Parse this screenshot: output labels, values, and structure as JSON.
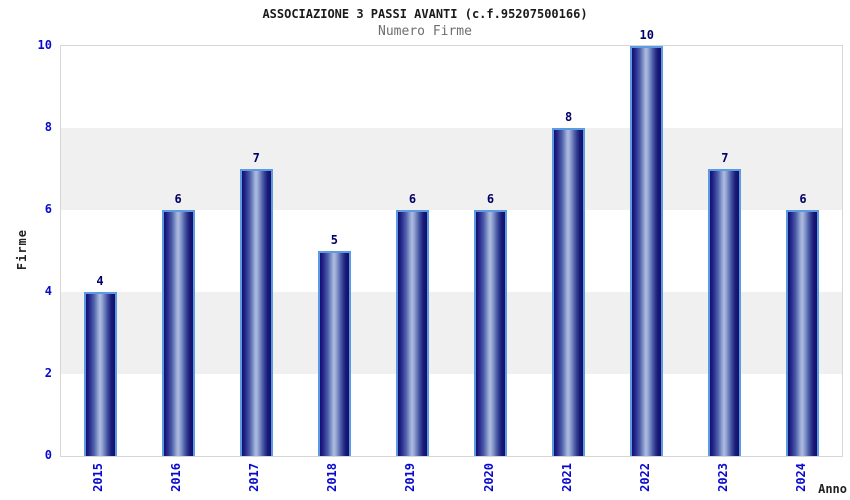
{
  "header": {
    "title": "ASSOCIAZIONE 3 PASSI AVANTI (c.f.95207500166)",
    "subtitle": "Numero Firme"
  },
  "chart_data": {
    "type": "bar",
    "title": "ASSOCIAZIONE 3 PASSI AVANTI (c.f.95207500166)",
    "subtitle": "Numero Firme",
    "categories": [
      "2015",
      "2016",
      "2017",
      "2018",
      "2019",
      "2020",
      "2021",
      "2022",
      "2023",
      "2024"
    ],
    "values": [
      4,
      6,
      7,
      5,
      6,
      6,
      8,
      10,
      7,
      6
    ],
    "xlabel": "Anno",
    "ylabel": "Firme",
    "ylim": [
      0,
      10
    ],
    "yticks": [
      0,
      2,
      4,
      6,
      8,
      10
    ],
    "grid": "alternating-horizontal-bands",
    "legend_position": "none",
    "value_labels_shown": true,
    "x_tick_rotation_degrees": 90
  },
  "colors": {
    "bar_dark": "#10106a",
    "bar_highlight": "#aebce0",
    "bar_outline": "#5d9ae4",
    "band_gray": "#f0f0f0",
    "band_white": "#ffffff",
    "plot_border": "#d6d6d6",
    "tick_label_blue": "#0909cc",
    "value_label_navy": "#000066",
    "title_color": "#1a1a1a",
    "subtitle_color": "#6e6e6e",
    "axis_label_color": "#222222",
    "background": "#ffffff"
  }
}
